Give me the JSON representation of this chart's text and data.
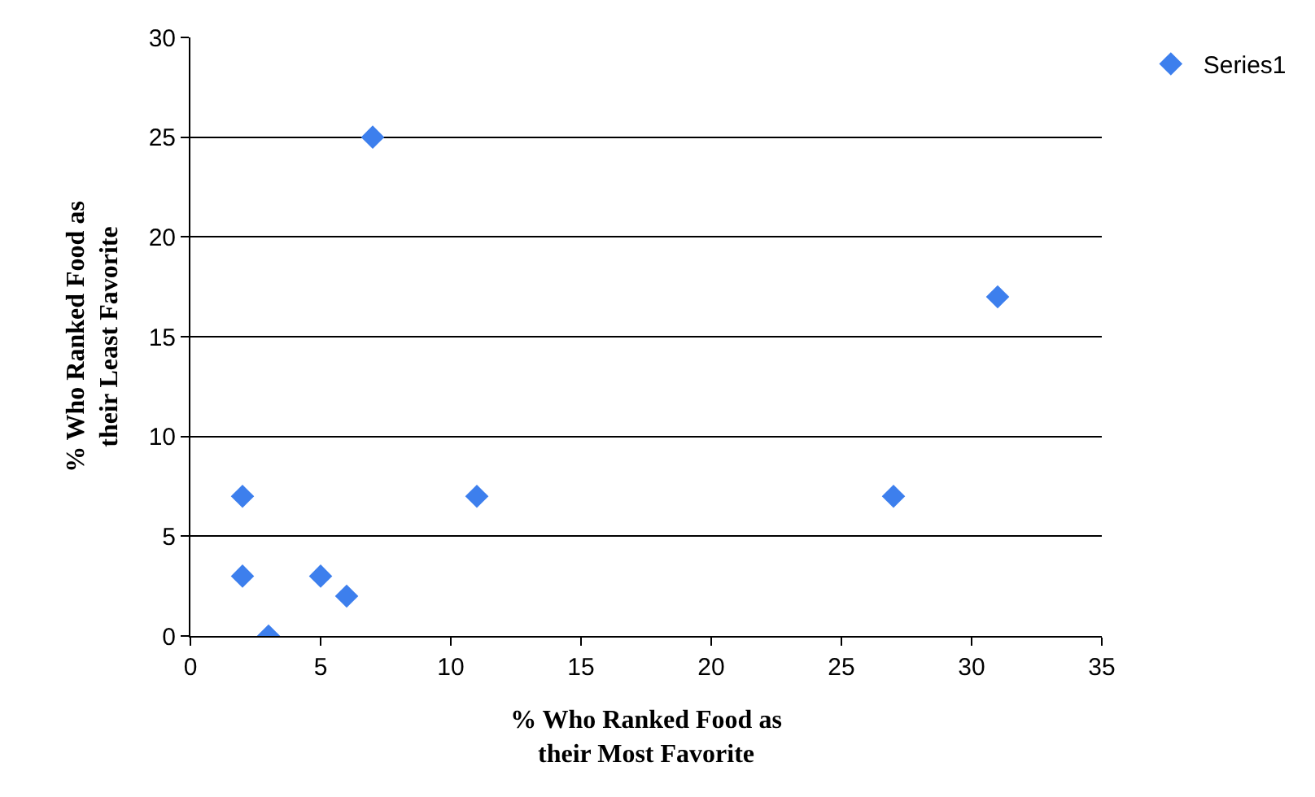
{
  "chart_data": {
    "type": "scatter",
    "xlabel": "% Who Ranked Food as\ntheir Most Favorite",
    "ylabel": "% Who Ranked Food as\ntheir Least Favorite",
    "x": [
      2,
      2,
      3,
      5,
      6,
      7,
      11,
      27,
      31
    ],
    "series": [
      {
        "name": "Series1",
        "color": "#3d7fed",
        "values": [
          7,
          3,
          0,
          3,
          2,
          25,
          7,
          7,
          17
        ]
      }
    ],
    "xlim": [
      0,
      35
    ],
    "xticks": [
      0,
      5,
      10,
      15,
      20,
      25,
      30,
      35
    ],
    "ylim": [
      0,
      30
    ],
    "yticks": [
      0,
      5,
      10,
      15,
      20,
      25,
      30
    ],
    "grid": "y",
    "legend": "top right",
    "marker": "diamond"
  }
}
